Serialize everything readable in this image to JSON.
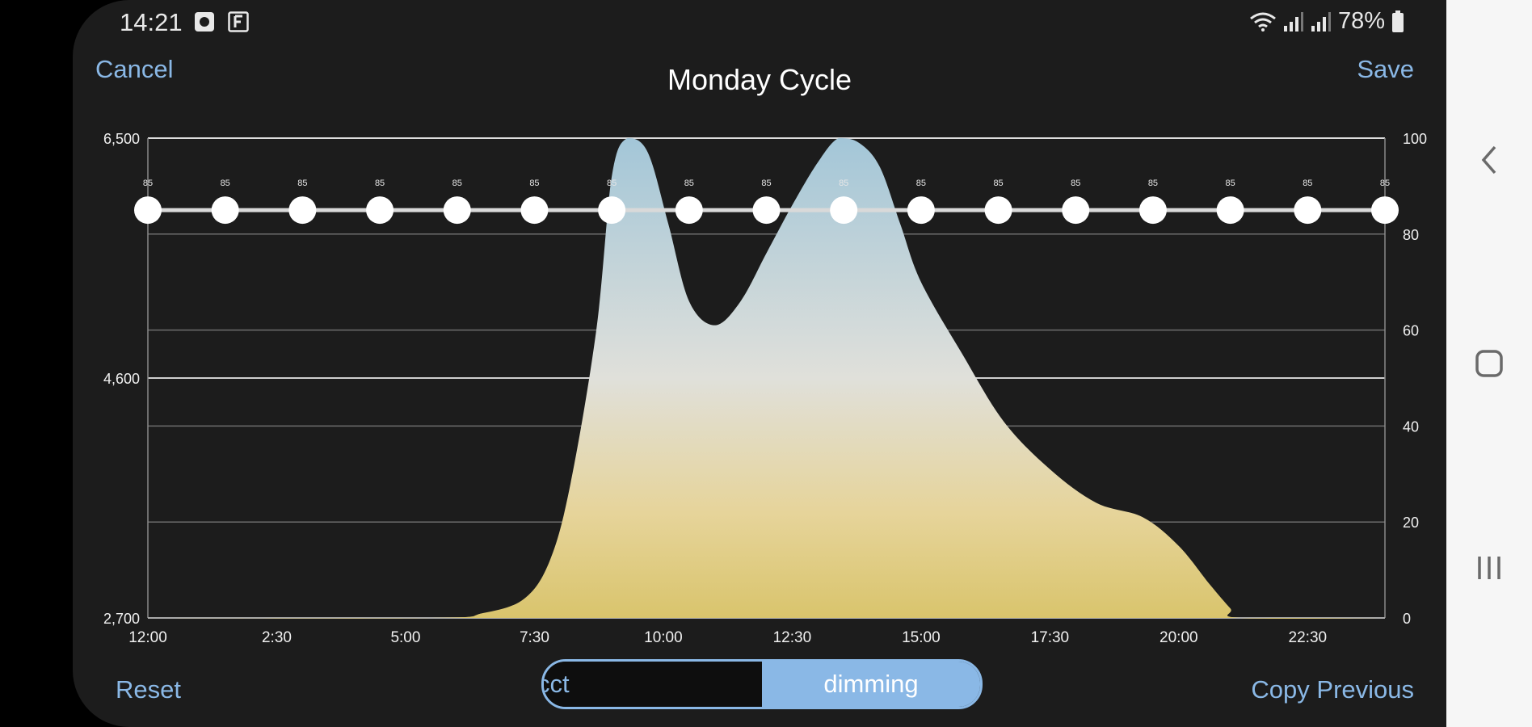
{
  "status_bar": {
    "time": "14:21",
    "battery": "78%",
    "icons": [
      "alarm-icon",
      "f-badge-icon",
      "wifi-icon",
      "signal-icon",
      "signal-icon",
      "battery-icon"
    ]
  },
  "header": {
    "cancel_label": "Cancel",
    "title": "Monday Cycle",
    "save_label": "Save"
  },
  "footer": {
    "reset_label": "Reset",
    "copy_label": "Copy Previous"
  },
  "toggle": {
    "options": [
      "cct",
      "dimming"
    ],
    "selected": "dimming"
  },
  "nav_bar": {
    "icons": [
      "back-icon",
      "home-icon",
      "recents-icon"
    ]
  },
  "chart_data": {
    "type": "area",
    "left_axis": {
      "ticks": [
        "6,500",
        "4,600",
        "2,700"
      ],
      "range": [
        2700,
        6500
      ]
    },
    "right_axis": {
      "ticks": [
        "100",
        "80",
        "60",
        "40",
        "20",
        "0"
      ],
      "range": [
        0,
        100
      ]
    },
    "x_ticks": [
      "12:00",
      "2:30",
      "5:00",
      "7:30",
      "10:00",
      "12:30",
      "15:00",
      "17:30",
      "20:00",
      "22:30"
    ],
    "x_range_hours": [
      0,
      24
    ],
    "series": [
      {
        "x": [
          0,
          5.5,
          6.5,
          7.3,
          7.8,
          8.2,
          8.7,
          9.0,
          9.3,
          9.7,
          10.1,
          10.5,
          11.0,
          11.5,
          12.0,
          12.5,
          13.0,
          13.4,
          13.8,
          14.2,
          14.6,
          15.0,
          15.8,
          16.6,
          17.5,
          18.4,
          19.3,
          20.0,
          20.6,
          21.0,
          21.2,
          24
        ],
        "y": [
          0,
          0,
          1,
          4,
          12,
          28,
          60,
          92,
          100,
          97,
          82,
          66,
          61,
          66,
          76,
          86,
          95,
          100,
          99,
          94,
          82,
          70,
          55,
          41,
          31,
          24,
          21,
          15,
          7,
          2,
          0,
          0
        ]
      }
    ],
    "control_points": {
      "hours": [
        0,
        1.5,
        3,
        4.5,
        6,
        7.5,
        9,
        10.5,
        12,
        13.5,
        15,
        16.5,
        18,
        19.5,
        21,
        22.5,
        24
      ],
      "value": 85,
      "label": "85"
    },
    "grid": true
  }
}
